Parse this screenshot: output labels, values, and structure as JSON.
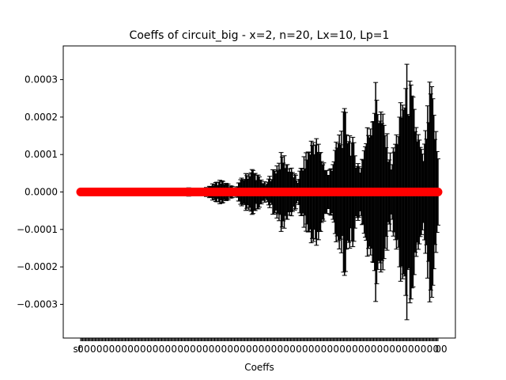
{
  "chart_data": {
    "type": "scatter",
    "title": "Coeffs of circuit_big - x=2, n=20, Lx=10, Lp=1",
    "xlabel": "Coeffs",
    "ylabel": "",
    "ylim": [
      -0.00039,
      0.00039
    ],
    "y_ticks": [
      -0.0003,
      -0.0002,
      -0.0001,
      0.0,
      0.0001,
      0.0002,
      0.0003
    ],
    "y_tick_labels": [
      "−0.0003",
      "−0.0002",
      "−0.0001",
      "0.0000",
      "0.0001",
      "0.0002",
      "0.0003"
    ],
    "x_tick_label_first": "st",
    "x_tick_label_last": "00",
    "grid": false,
    "legend": "none",
    "colors": {
      "points": "#ff0000",
      "errorbars": "#000000"
    },
    "series": [
      {
        "markers": "points",
        "errorbars": true,
        "groups": [
          {
            "x_start": 1,
            "x_end": 30,
            "y": 0,
            "err_max": 5e-07
          },
          {
            "x_start": 31,
            "x_end": 60,
            "y": 0,
            "err_max": 5e-07
          },
          {
            "x_start": 61,
            "x_end": 90,
            "y": 0,
            "err_max": 8e-07
          },
          {
            "x_start": 91,
            "x_end": 120,
            "y": 0,
            "err_max": 1.2e-05
          },
          {
            "x_start": 121,
            "x_end": 150,
            "y": 0,
            "err_max": 3.5e-05
          },
          {
            "x_start": 151,
            "x_end": 180,
            "y": 0,
            "err_max": 7e-05
          },
          {
            "x_start": 181,
            "x_end": 210,
            "y": 0,
            "err_max": 0.000115
          },
          {
            "x_start": 211,
            "x_end": 240,
            "y": 0,
            "err_max": 0.000175
          },
          {
            "x_start": 241,
            "x_end": 270,
            "y": 0,
            "err_max": 0.000232
          },
          {
            "x_start": 271,
            "x_end": 300,
            "y": 0,
            "err_max": 0.000318
          },
          {
            "x_start": 301,
            "x_end": 330,
            "y": 0,
            "err_max": 0.000357
          },
          {
            "x_start": 331,
            "x_end": 345,
            "y": 0,
            "err_max": 0.000327
          }
        ]
      }
    ]
  }
}
